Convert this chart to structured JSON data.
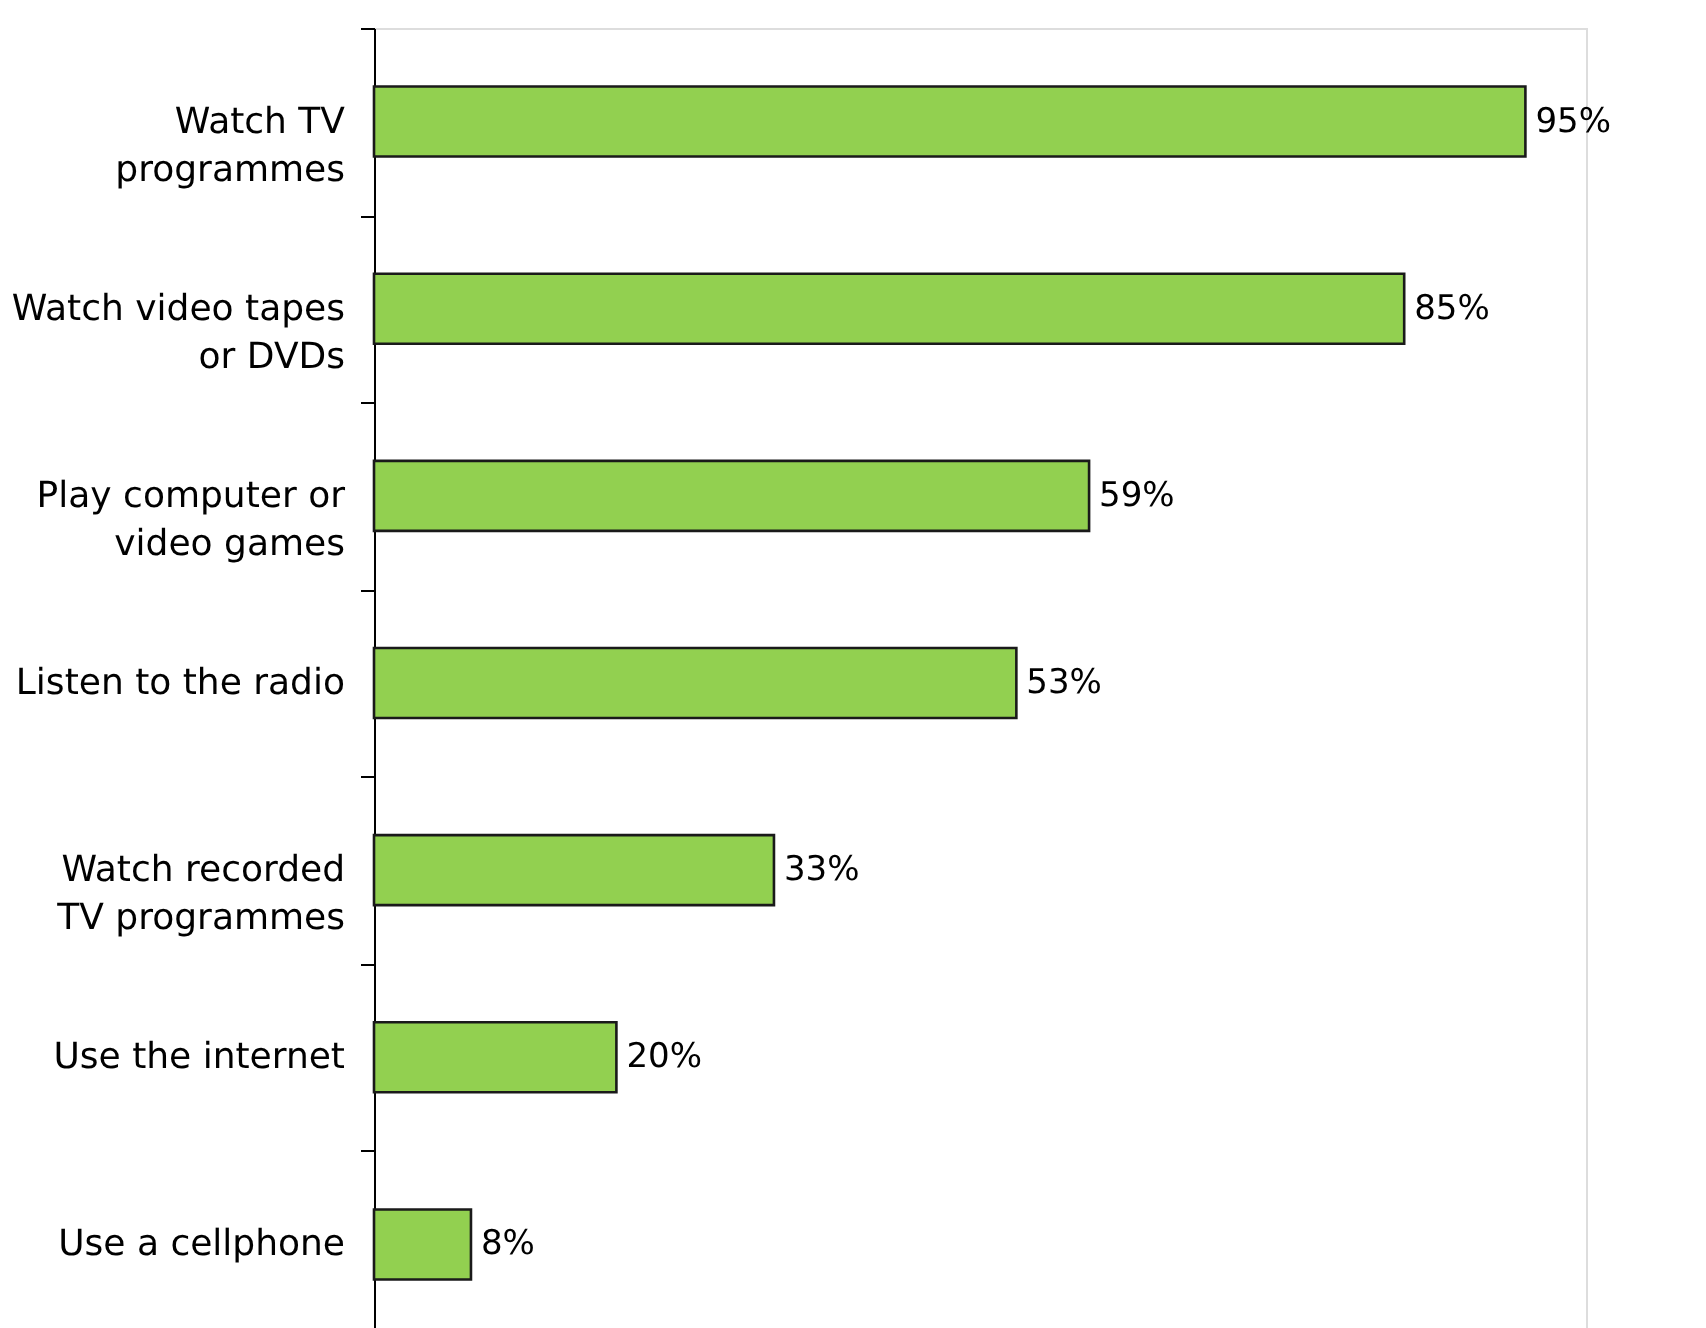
{
  "chart_data": {
    "type": "bar",
    "orientation": "horizontal",
    "categories": [
      "Watch TV\nprogrammes",
      "Watch video tapes\nor DVDs",
      "Play computer or\nvideo games",
      "Listen to the radio",
      "Watch recorded\nTV programmes",
      "Use the internet",
      "Use a cellphone"
    ],
    "values": [
      95,
      85,
      59,
      53,
      33,
      20,
      8
    ],
    "value_labels": [
      "95%",
      "85%",
      "59%",
      "53%",
      "33%",
      "20%",
      "8%"
    ],
    "color": "#92d050",
    "xlim": [
      0,
      100
    ],
    "tick_labels": "y"
  }
}
